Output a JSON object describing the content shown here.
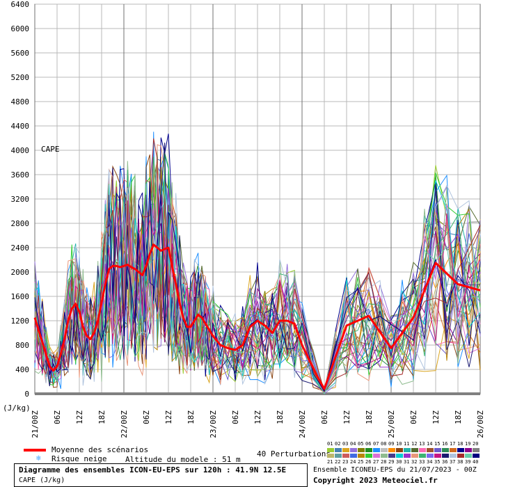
{
  "chart_data": {
    "type": "line",
    "ylabel_unit": "(J/kg)",
    "variable_label": "CAPE",
    "ylim": [
      0,
      6400
    ],
    "y_ticks": [
      0,
      400,
      800,
      1200,
      1600,
      2000,
      2400,
      2800,
      3200,
      3600,
      4000,
      4400,
      4800,
      5200,
      5600,
      6000,
      6400
    ],
    "x_range_hours": [
      0,
      120
    ],
    "x_ticks": [
      {
        "h": 0,
        "label": "21/00Z"
      },
      {
        "h": 6,
        "label": "06Z"
      },
      {
        "h": 12,
        "label": "12Z"
      },
      {
        "h": 18,
        "label": "18Z"
      },
      {
        "h": 24,
        "label": "22/00Z"
      },
      {
        "h": 30,
        "label": "06Z"
      },
      {
        "h": 36,
        "label": "12Z"
      },
      {
        "h": 42,
        "label": "18Z"
      },
      {
        "h": 48,
        "label": "23/00Z"
      },
      {
        "h": 54,
        "label": "06Z"
      },
      {
        "h": 60,
        "label": "12Z"
      },
      {
        "h": 66,
        "label": "18Z"
      },
      {
        "h": 72,
        "label": "24/00Z"
      },
      {
        "h": 78,
        "label": "06Z"
      },
      {
        "h": 84,
        "label": "12Z"
      },
      {
        "h": 90,
        "label": "18Z"
      },
      {
        "h": 96,
        "label": "25/00Z"
      },
      {
        "h": 102,
        "label": "06Z"
      },
      {
        "h": 108,
        "label": "12Z"
      },
      {
        "h": 114,
        "label": "18Z"
      },
      {
        "h": 120,
        "label": "26/00Z"
      }
    ],
    "mean_series": {
      "name": "Moyenne des scénarios",
      "color": "#ff0000",
      "points": [
        [
          0,
          1250
        ],
        [
          1,
          1050
        ],
        [
          2,
          850
        ],
        [
          3,
          650
        ],
        [
          4,
          450
        ],
        [
          5,
          380
        ],
        [
          6,
          450
        ],
        [
          7,
          650
        ],
        [
          8,
          900
        ],
        [
          9,
          1200
        ],
        [
          10,
          1400
        ],
        [
          11,
          1480
        ],
        [
          12,
          1350
        ],
        [
          13,
          1100
        ],
        [
          14,
          950
        ],
        [
          15,
          900
        ],
        [
          16,
          1000
        ],
        [
          17,
          1200
        ],
        [
          18,
          1500
        ],
        [
          19,
          1800
        ],
        [
          20,
          2050
        ],
        [
          21,
          2100
        ],
        [
          22,
          2100
        ],
        [
          23,
          2080
        ],
        [
          24,
          2100
        ],
        [
          25,
          2120
        ],
        [
          26,
          2080
        ],
        [
          27,
          2050
        ],
        [
          28,
          2000
        ],
        [
          29,
          1950
        ],
        [
          30,
          2100
        ],
        [
          31,
          2300
        ],
        [
          32,
          2450
        ],
        [
          33,
          2400
        ],
        [
          34,
          2350
        ],
        [
          35,
          2380
        ],
        [
          36,
          2400
        ],
        [
          37,
          2100
        ],
        [
          38,
          1800
        ],
        [
          39,
          1500
        ],
        [
          40,
          1250
        ],
        [
          41,
          1100
        ],
        [
          42,
          1100
        ],
        [
          43,
          1200
        ],
        [
          44,
          1300
        ],
        [
          45,
          1250
        ],
        [
          46,
          1150
        ],
        [
          47,
          1050
        ],
        [
          48,
          950
        ],
        [
          50,
          800
        ],
        [
          52,
          750
        ],
        [
          54,
          720
        ],
        [
          56,
          800
        ],
        [
          58,
          1100
        ],
        [
          60,
          1200
        ],
        [
          62,
          1120
        ],
        [
          64,
          1000
        ],
        [
          66,
          1200
        ],
        [
          68,
          1200
        ],
        [
          70,
          1150
        ],
        [
          72,
          800
        ],
        [
          76,
          300
        ],
        [
          78,
          80
        ],
        [
          84,
          1120
        ],
        [
          90,
          1280
        ],
        [
          96,
          750
        ],
        [
          102,
          1250
        ],
        [
          108,
          2150
        ],
        [
          114,
          1800
        ],
        [
          120,
          1700
        ]
      ]
    },
    "perturbation_count_label": "40 Perturbations",
    "legend": {
      "mean_label": "Moyenne des scénarios",
      "snow_label": "Risque neige",
      "altitude_label": "Altitude du modele : 51 m",
      "numbers_row1": [
        "01",
        "02",
        "03",
        "04",
        "05",
        "06",
        "07",
        "08",
        "09",
        "10",
        "11",
        "12",
        "13",
        "14",
        "15",
        "16",
        "17",
        "18",
        "19",
        "20"
      ],
      "numbers_row2": [
        "21",
        "22",
        "23",
        "24",
        "25",
        "26",
        "27",
        "28",
        "29",
        "30",
        "31",
        "32",
        "33",
        "34",
        "35",
        "36",
        "37",
        "38",
        "39",
        "40"
      ],
      "palette": [
        "#9acd32",
        "#4682b4",
        "#daa520",
        "#9370db",
        "#808000",
        "#228b22",
        "#1e90ff",
        "#c0c0c0",
        "#ff8c00",
        "#8b4513",
        "#20b2aa",
        "#556b2f",
        "#ff69b4",
        "#a0522d",
        "#6a5acd",
        "#2e8b57",
        "#d2691e",
        "#00008b",
        "#8b008b",
        "#808080",
        "#bdb76b",
        "#5f9ea0",
        "#cd5c5c",
        "#4169e1",
        "#b8860b",
        "#32cd32",
        "#da70d6",
        "#8fbc8f",
        "#483d8b",
        "#00ced1",
        "#9932cc",
        "#e9967a",
        "#3cb371",
        "#7b68ee",
        "#c71585",
        "#191970",
        "#b0c4de",
        "#a52a2a",
        "#66cdaa",
        "#000080"
      ]
    },
    "title": "Diagramme des ensembles ICON-EU-EPS sur 120h : 41.9N 12.5E",
    "subtitle": "CAPE (J/kg)",
    "run_info": "Ensemble ICONEU-EPS du 21/07/2023 - 00Z",
    "copyright": "Copyright 2023 Meteociel.fr",
    "grid": true
  }
}
